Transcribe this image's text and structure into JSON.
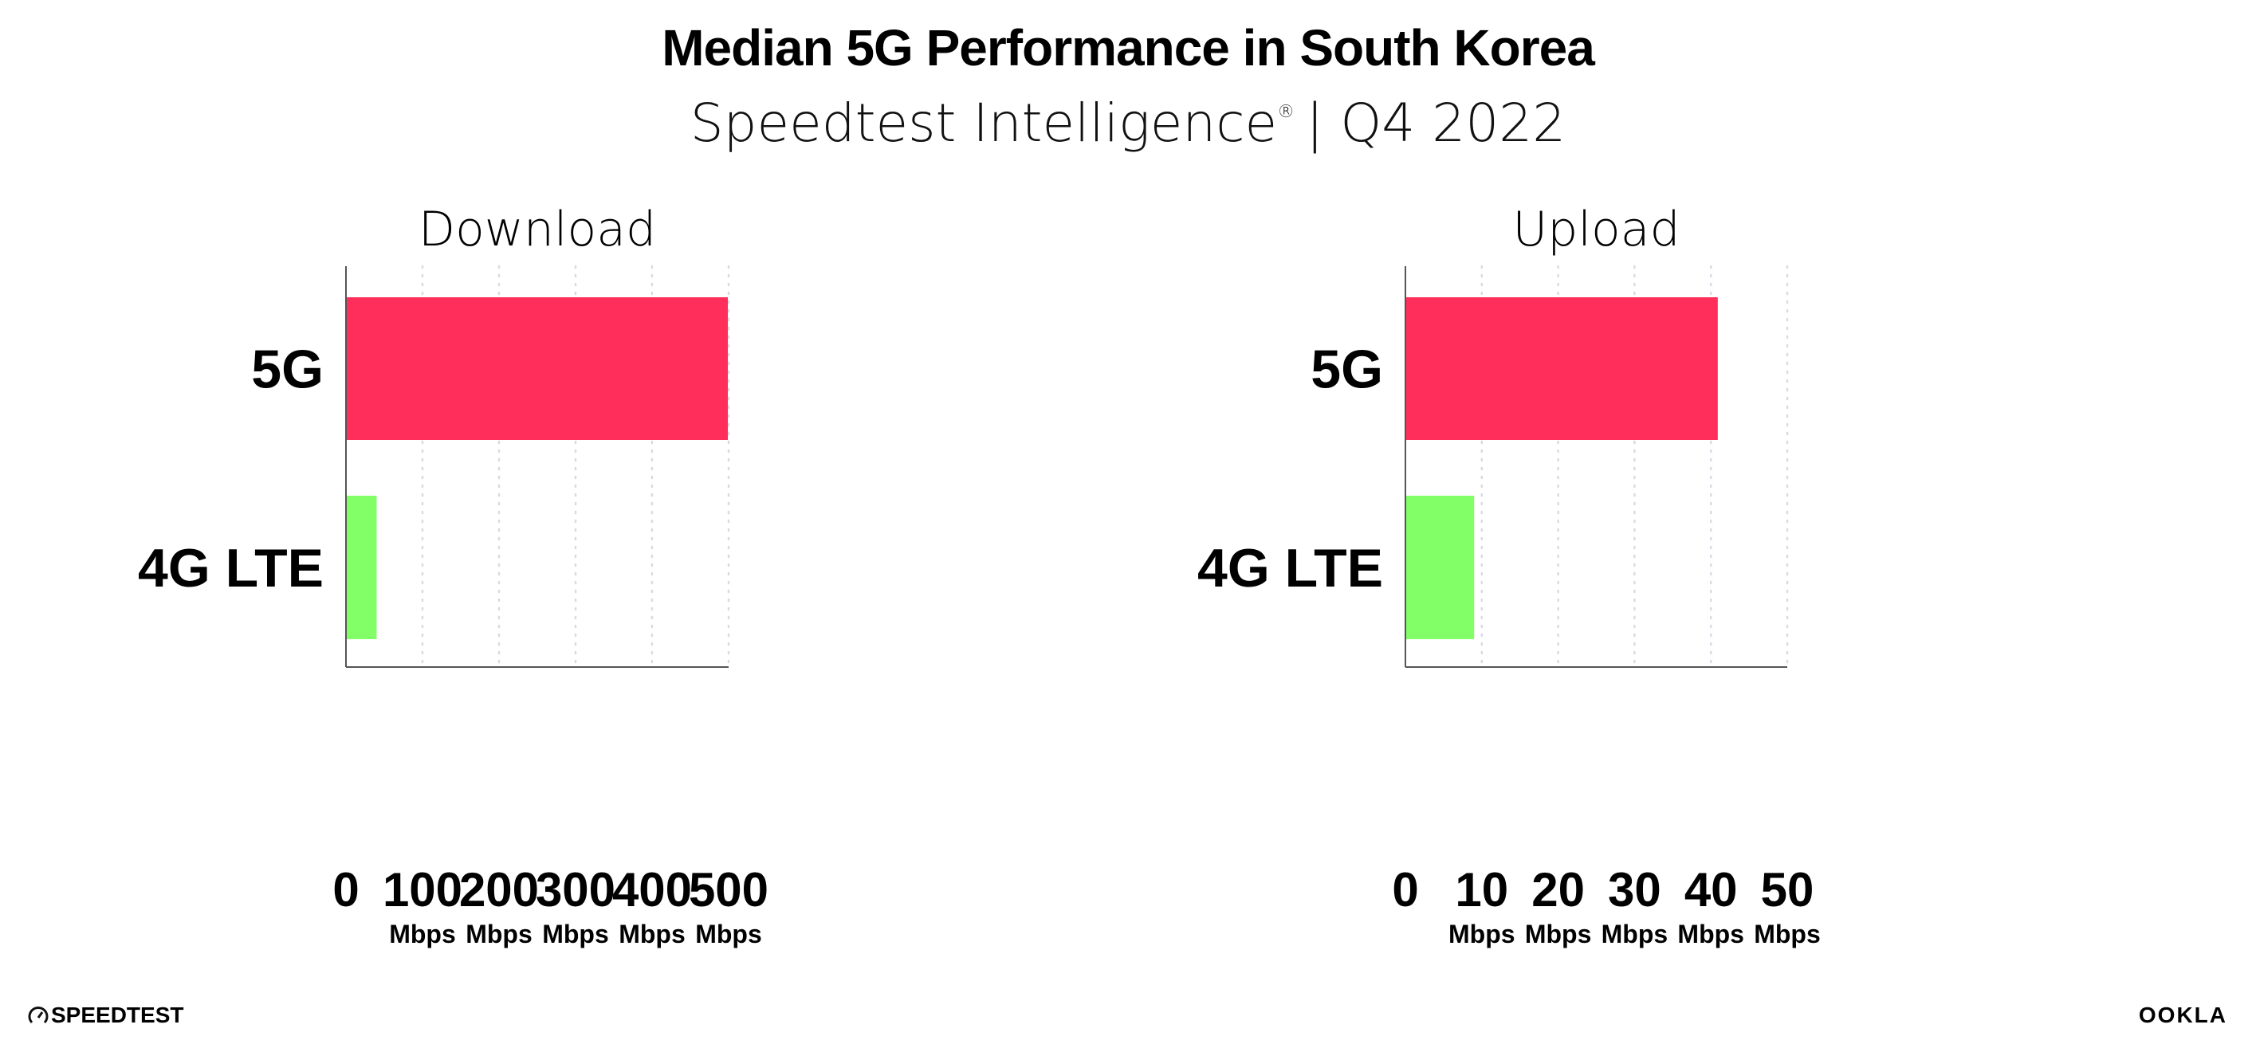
{
  "title": "Median 5G Performance in South Korea",
  "subtitle_source": "Speedtest Intelligence",
  "subtitle_mark": "®",
  "subtitle_period": "| Q4 2022",
  "colors": {
    "5G": "#ff2e5b",
    "4G LTE": "#82ff66",
    "axis": "#555555",
    "grid": "#d8dbe6"
  },
  "chart_data": [
    {
      "type": "bar",
      "orientation": "horizontal",
      "title": "Download",
      "categories": [
        "5G",
        "4G LTE"
      ],
      "values": [
        499,
        40
      ],
      "xlim": [
        0,
        500
      ],
      "ticks": [
        "0",
        "100",
        "200",
        "300",
        "400",
        "500"
      ],
      "tick_values": [
        0,
        100,
        200,
        300,
        400,
        500
      ],
      "unit": "Mbps",
      "grid": true
    },
    {
      "type": "bar",
      "orientation": "horizontal",
      "title": "Upload",
      "categories": [
        "5G",
        "4G LTE"
      ],
      "values": [
        40.9,
        9.0
      ],
      "xlim": [
        0,
        50
      ],
      "ticks": [
        "0",
        "10",
        "20",
        "30",
        "40",
        "50"
      ],
      "tick_values": [
        0,
        10,
        20,
        30,
        40,
        50
      ],
      "unit": "Mbps",
      "grid": true
    }
  ],
  "footer": {
    "left_logo": "SPEEDTEST",
    "right_logo": "OOKLA"
  }
}
